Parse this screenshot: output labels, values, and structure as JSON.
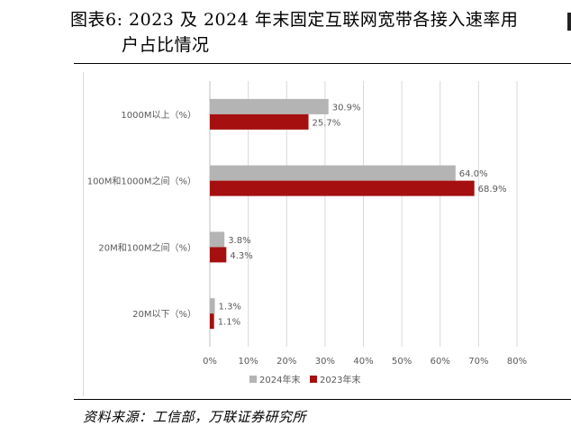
{
  "figure": {
    "title_line1": "图表6:  2023 及 2024 年末固定互联网宽带各接入速率用",
    "title_line2": "户占比情况",
    "source": "资料来源：工信部，万联证券研究所"
  },
  "chart_data": {
    "type": "bar",
    "orientation": "horizontal",
    "categories": [
      "1000M以上（%）",
      "100M和1000M之间（%）",
      "20M和100M之间（%）",
      "20M以下（%）"
    ],
    "series": [
      {
        "name": "2024年末",
        "values": [
          30.9,
          64.0,
          3.8,
          1.3
        ],
        "labels": [
          "30.9%",
          "64.0%",
          "3.8%",
          "1.3%"
        ],
        "color": "#b4b4b4"
      },
      {
        "name": "2023年末",
        "values": [
          25.7,
          68.9,
          4.3,
          1.1
        ],
        "labels": [
          "25.7%",
          "68.9%",
          "4.3%",
          "1.1%"
        ],
        "color": "#a50f0f"
      }
    ],
    "xlim": [
      0,
      80
    ],
    "xticks": [
      "0%",
      "10%",
      "20%",
      "30%",
      "40%",
      "50%",
      "60%",
      "70%",
      "80%"
    ],
    "grid": true,
    "legend_position": "bottom"
  }
}
